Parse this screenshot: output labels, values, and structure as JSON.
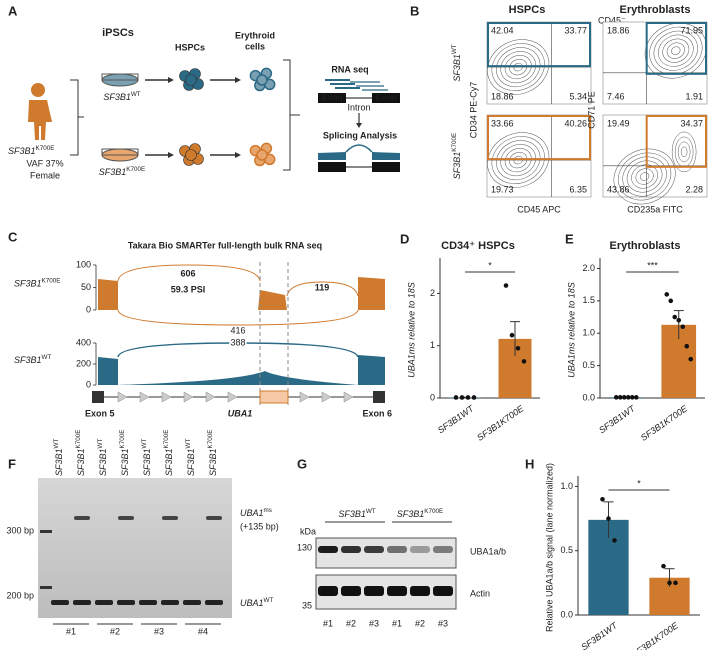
{
  "panel_labels": [
    "A",
    "B",
    "C",
    "D",
    "E",
    "F",
    "G",
    "H"
  ],
  "a": {
    "stages": [
      "iPSCs",
      "HSPCs"
    ],
    "erythroid": [
      "Erythroid",
      "cells"
    ],
    "patient": {
      "gene": "SF3B1",
      "allele": "K700E"
    },
    "vaf": "VAF 37%",
    "sex": "Female",
    "wt": {
      "gene": "SF3B1",
      "allele": "WT"
    },
    "mut": {
      "gene": "SF3B1",
      "allele": "K700E"
    },
    "rnaseq": "RNA seq",
    "exons": [
      "Exon",
      "Exon"
    ],
    "intron": "Intron",
    "splicing": "Splicing Analysis"
  },
  "b": {
    "titles": [
      "HSPCs",
      "Erythroblasts"
    ],
    "gate": "CD45⁻",
    "rows": [
      {
        "gene": "SF3B1",
        "allele": "WT"
      },
      {
        "gene": "SF3B1",
        "allele": "K700E"
      }
    ],
    "hspc_axes": [
      "CD34 PE-Cy7",
      "CD45 APC"
    ],
    "ery_axes": [
      "CD71 PE",
      "CD235a FITC"
    ],
    "quadrants": [
      [
        42.04,
        33.77,
        18.86,
        5.34
      ],
      [
        33.66,
        40.26,
        19.73,
        6.35
      ],
      [
        18.86,
        71.95,
        7.46,
        1.91
      ],
      [
        19.49,
        34.37,
        43.86,
        2.28
      ]
    ]
  },
  "c": {
    "title": "Takara Bio SMARTer full-length bulk RNA seq",
    "tracks": [
      {
        "gene": "SF3B1",
        "allele": "K700E",
        "ticks": [
          "100",
          "50",
          "0"
        ],
        "junctions": [
          "606",
          "119",
          "416"
        ],
        "psi": "59.3 PSI"
      },
      {
        "gene": "SF3B1",
        "allele": "WT",
        "ticks": [
          "400",
          "200",
          "0"
        ],
        "junctions": [
          "388"
        ]
      }
    ],
    "exon_left": "Exon 5",
    "gene": "UBA1",
    "exon_right": "Exon 6"
  },
  "f": {
    "lanes": [
      {
        "gene": "SF3B1",
        "allele": "WT"
      },
      {
        "gene": "SF3B1",
        "allele": "K700E"
      },
      {
        "gene": "SF3B1",
        "allele": "WT"
      },
      {
        "gene": "SF3B1",
        "allele": "K700E"
      },
      {
        "gene": "SF3B1",
        "allele": "WT"
      },
      {
        "gene": "SF3B1",
        "allele": "K700E"
      },
      {
        "gene": "SF3B1",
        "allele": "WT"
      },
      {
        "gene": "SF3B1",
        "allele": "K700E"
      }
    ],
    "markers": [
      "300 bp",
      "200 bp"
    ],
    "ms": {
      "gene": "UBA1",
      "allele": "ms"
    },
    "shift": "(+135 bp)",
    "wt": {
      "gene": "UBA1",
      "allele": "WT"
    },
    "samples": [
      "#1",
      "#2",
      "#3",
      "#4"
    ]
  },
  "g": {
    "groups": [
      {
        "gene": "SF3B1",
        "allele": "WT"
      },
      {
        "gene": "SF3B1",
        "allele": "K700E"
      }
    ],
    "kda": "kDa",
    "markers": [
      "130",
      "35"
    ],
    "bands": [
      "UBA1a/b",
      "Actin"
    ],
    "samples": [
      "#1",
      "#2",
      "#3",
      "#1",
      "#2",
      "#3"
    ]
  },
  "chart_data": [
    {
      "type": "bar",
      "title": "CD34⁺ HSPCs",
      "ylabel": "UBA1ms relative to 18S",
      "categories": [
        "SF3B1WT",
        "SF3B1K700E"
      ],
      "values": [
        0.01,
        1.13
      ],
      "errors": [
        0.005,
        0.33
      ],
      "points": [
        [
          0.01,
          0.01,
          0.01,
          0.01
        ],
        [
          2.15,
          1.2,
          0.95,
          0.7
        ]
      ],
      "colors": [
        "#2b6a86",
        "#d07a2e"
      ],
      "ylim": [
        0,
        2.6
      ],
      "yticks": [
        0,
        1,
        2
      ],
      "significance": "*"
    },
    {
      "type": "bar",
      "title": "Erythroblasts",
      "ylabel": "UBA1ms relative to 18S",
      "categories": [
        "SF3B1WT",
        "SF3B1K700E"
      ],
      "values": [
        0.01,
        1.13
      ],
      "errors": [
        0.005,
        0.22
      ],
      "points": [
        [
          0.01,
          0.01,
          0.01,
          0.01,
          0.01,
          0.01
        ],
        [
          1.6,
          1.5,
          1.25,
          1.2,
          1.1,
          0.8,
          0.6
        ]
      ],
      "colors": [
        "#2b6a86",
        "#d07a2e"
      ],
      "ylim": [
        0,
        2.1
      ],
      "yticks": [
        {
          "value": 0,
          "label": "0.0"
        },
        {
          "value": 0.5,
          "label": "0.5"
        },
        {
          "value": 1,
          "label": "1.0"
        },
        {
          "value": 1.5,
          "label": "1.5"
        },
        {
          "value": 2,
          "label": "2.0"
        }
      ],
      "significance": "***"
    },
    {
      "type": "bar",
      "title": "",
      "ylabel": "Relative UBA1a/b signal (lane normalized)",
      "categories": [
        "SF3B1WT",
        "SF3B1K700E"
      ],
      "values": [
        0.74,
        0.29
      ],
      "errors": [
        0.14,
        0.07
      ],
      "points": [
        [
          0.9,
          0.75,
          0.58
        ],
        [
          0.38,
          0.25,
          0.25
        ]
      ],
      "colors": [
        "#2b6a86",
        "#d07a2e"
      ],
      "ylim": [
        0,
        1.05
      ],
      "yticks": [
        {
          "value": 0,
          "label": "0.0"
        },
        {
          "value": 0.5,
          "label": "0.5"
        },
        {
          "value": 1,
          "label": "1.0"
        }
      ],
      "significance": "*"
    }
  ]
}
